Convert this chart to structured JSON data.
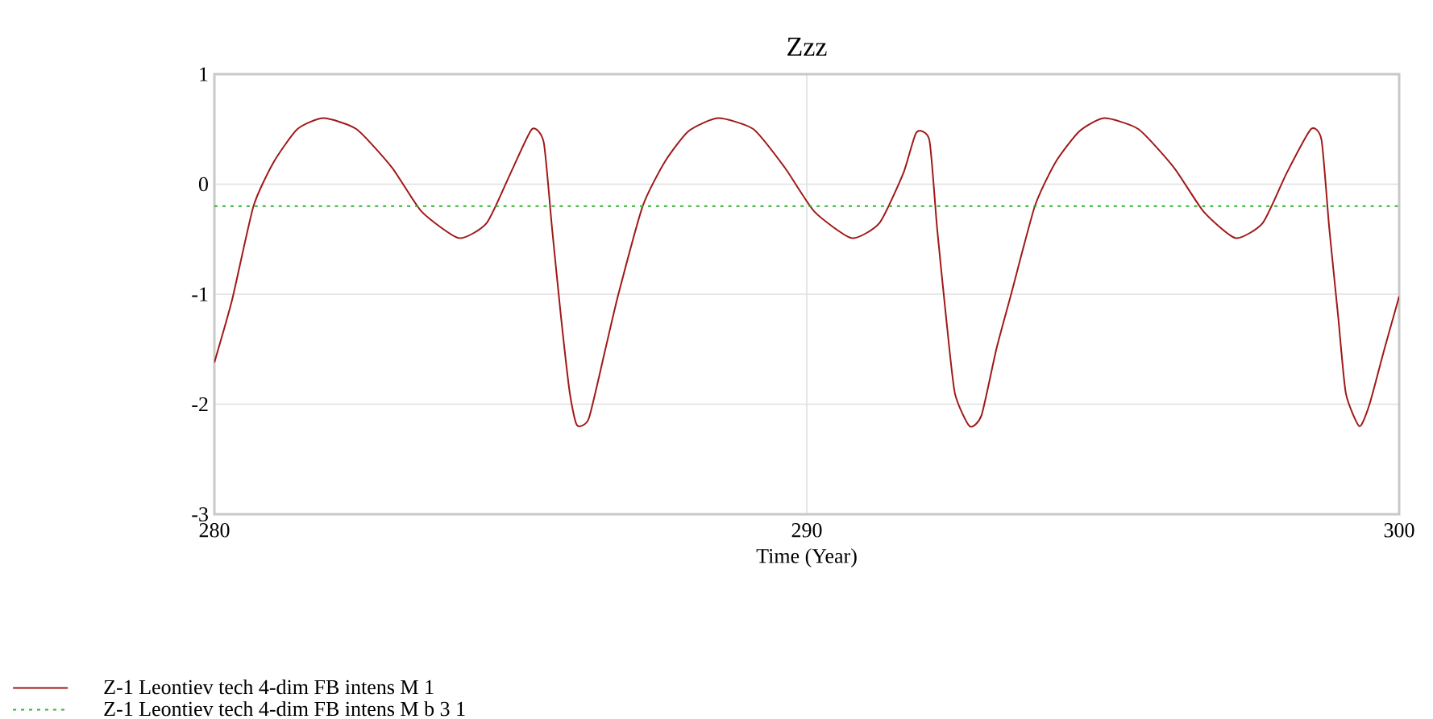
{
  "chart_data": {
    "type": "line",
    "title": "Zzz",
    "xlabel": "Time (Year)",
    "xlim": [
      280,
      300
    ],
    "xticks": [
      280,
      290,
      300
    ],
    "ylim": [
      -3,
      1
    ],
    "yticks": [
      -3,
      -2,
      -1,
      0,
      1
    ],
    "grid": true,
    "legend": "bottom",
    "series": [
      {
        "name": "Z-1 Leontiev tech 4-dim FB intens M 1",
        "color": "#a01818",
        "line_style": "solid",
        "x": [
          280,
          280.3,
          280.66,
          281.0,
          281.4,
          281.84,
          282.4,
          283.0,
          283.5,
          284.13,
          284.6,
          285.0,
          285.36,
          285.56,
          285.7,
          285.85,
          286.0,
          286.12,
          286.32,
          286.6,
          286.82,
          287.23,
          287.6,
          288.0,
          288.5,
          289.1,
          289.63,
          290.13,
          290.76,
          291.23,
          291.63,
          291.85,
          292.07,
          292.2,
          292.35,
          292.5,
          292.75,
          292.95,
          293.2,
          293.45,
          293.85,
          294.2,
          294.6,
          295.02,
          295.6,
          296.2,
          296.7,
          297.24,
          297.7,
          298.1,
          298.51,
          298.69,
          298.82,
          298.97,
          299.1,
          299.33,
          299.5,
          299.75,
          300
        ],
        "values": [
          -1.62,
          -1.05,
          -0.2,
          0.2,
          0.5,
          0.6,
          0.5,
          0.15,
          -0.25,
          -0.49,
          -0.35,
          0.1,
          0.5,
          0.38,
          -0.4,
          -1.2,
          -1.9,
          -2.19,
          -2.13,
          -1.5,
          -1.0,
          -0.2,
          0.2,
          0.48,
          0.6,
          0.5,
          0.15,
          -0.25,
          -0.49,
          -0.35,
          0.1,
          0.47,
          0.4,
          -0.4,
          -1.2,
          -1.9,
          -2.2,
          -2.1,
          -1.5,
          -1.0,
          -0.2,
          0.2,
          0.48,
          0.6,
          0.5,
          0.15,
          -0.25,
          -0.49,
          -0.35,
          0.1,
          0.5,
          0.4,
          -0.4,
          -1.2,
          -1.9,
          -2.2,
          -2.0,
          -1.5,
          -1.02
        ]
      },
      {
        "name": "Z-1 Leontiev tech 4-dim FB intens M  b 3 1",
        "color": "#33b033",
        "line_style": "dotted",
        "x": [
          280,
          300
        ],
        "values": [
          -0.2,
          -0.2
        ]
      }
    ]
  }
}
